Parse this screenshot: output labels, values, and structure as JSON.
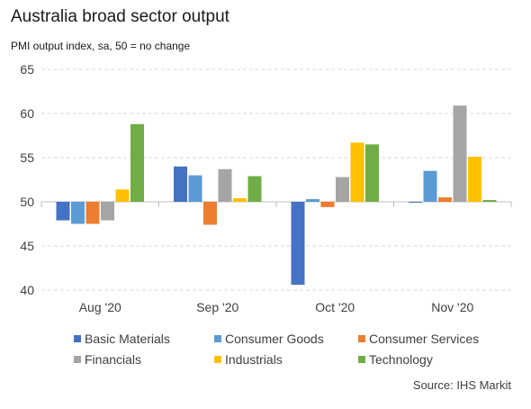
{
  "chart_data": {
    "type": "bar",
    "title": "Australia broad sector output",
    "subtitle": "PMI output index, sa, 50 = no change",
    "source": "Source: IHS Markit",
    "categories": [
      "Aug '20",
      "Sep '20",
      "Oct '20",
      "Nov '20"
    ],
    "baseline": 50,
    "ylim": [
      40,
      65
    ],
    "yticks": [
      40,
      45,
      50,
      55,
      60,
      65
    ],
    "grid": true,
    "legend_position": "bottom",
    "series": [
      {
        "name": "Basic Materials",
        "color": "#4472c4",
        "values": [
          47.9,
          54.0,
          40.6,
          49.9
        ]
      },
      {
        "name": "Consumer Goods",
        "color": "#5b9bd5",
        "values": [
          47.5,
          53.0,
          50.3,
          53.5
        ]
      },
      {
        "name": "Consumer Services",
        "color": "#ed7d31",
        "values": [
          47.5,
          47.4,
          49.4,
          50.5
        ]
      },
      {
        "name": "Financials",
        "color": "#a5a5a5",
        "values": [
          47.9,
          53.7,
          52.8,
          60.9
        ]
      },
      {
        "name": "Industrials",
        "color": "#ffc000",
        "values": [
          51.4,
          50.4,
          56.7,
          55.1
        ]
      },
      {
        "name": "Technology",
        "color": "#70ad47",
        "values": [
          58.8,
          52.9,
          56.5,
          50.2
        ]
      }
    ]
  }
}
